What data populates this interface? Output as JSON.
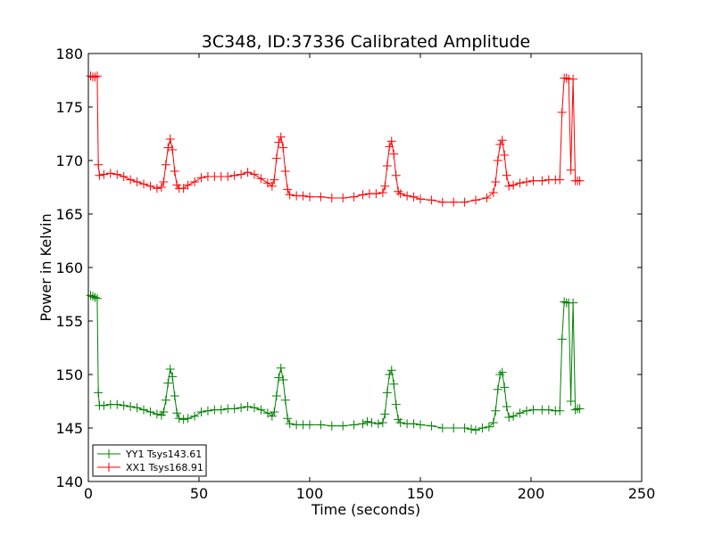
{
  "chart_data": {
    "type": "line",
    "title": "3C348, ID:37336 Calibrated Amplitude",
    "xlabel": "Time (seconds)",
    "ylabel": "Power in Kelvin",
    "xlim": [
      0,
      250
    ],
    "ylim": [
      140,
      180
    ],
    "xticks": [
      0,
      50,
      100,
      150,
      200,
      250
    ],
    "yticks": [
      140,
      145,
      150,
      155,
      160,
      165,
      170,
      175,
      180
    ],
    "legend_position": "lower-left",
    "grid": false,
    "series": [
      {
        "name": "YY1 Tsys143.61",
        "color": "#008000",
        "marker": "+",
        "points": [
          [
            1,
            157.4
          ],
          [
            2,
            157.3
          ],
          [
            3,
            157.2
          ],
          [
            4,
            157.1
          ],
          [
            4.5,
            148.3
          ],
          [
            5,
            147.1
          ],
          [
            7,
            147.1
          ],
          [
            10,
            147.2
          ],
          [
            13,
            147.2
          ],
          [
            16,
            147.1
          ],
          [
            19,
            147.0
          ],
          [
            22,
            146.9
          ],
          [
            25,
            146.7
          ],
          [
            28,
            146.5
          ],
          [
            31,
            146.3
          ],
          [
            33,
            146.2
          ],
          [
            34,
            146.5
          ],
          [
            35,
            147.6
          ],
          [
            36,
            149.2
          ],
          [
            37,
            150.5
          ],
          [
            38,
            149.8
          ],
          [
            39,
            148.0
          ],
          [
            40,
            146.4
          ],
          [
            41,
            145.9
          ],
          [
            43,
            145.8
          ],
          [
            45,
            145.9
          ],
          [
            48,
            146.1
          ],
          [
            51,
            146.5
          ],
          [
            54,
            146.6
          ],
          [
            57,
            146.7
          ],
          [
            60,
            146.7
          ],
          [
            63,
            146.8
          ],
          [
            66,
            146.8
          ],
          [
            69,
            146.9
          ],
          [
            72,
            147.0
          ],
          [
            75,
            146.9
          ],
          [
            78,
            146.7
          ],
          [
            81,
            146.4
          ],
          [
            83,
            146.1
          ],
          [
            84,
            146.5
          ],
          [
            85,
            148.0
          ],
          [
            86,
            149.7
          ],
          [
            87,
            150.6
          ],
          [
            88,
            149.5
          ],
          [
            89,
            147.6
          ],
          [
            90,
            145.9
          ],
          [
            91,
            145.4
          ],
          [
            94,
            145.3
          ],
          [
            97,
            145.3
          ],
          [
            100,
            145.3
          ],
          [
            105,
            145.3
          ],
          [
            110,
            145.2
          ],
          [
            115,
            145.2
          ],
          [
            120,
            145.3
          ],
          [
            124,
            145.4
          ],
          [
            126,
            145.6
          ],
          [
            128,
            145.5
          ],
          [
            131,
            145.4
          ],
          [
            133,
            145.5
          ],
          [
            134,
            146.3
          ],
          [
            135,
            148.3
          ],
          [
            136,
            150.0
          ],
          [
            137,
            150.4
          ],
          [
            138,
            149.1
          ],
          [
            139,
            147.2
          ],
          [
            140,
            145.8
          ],
          [
            141,
            145.5
          ],
          [
            144,
            145.4
          ],
          [
            147,
            145.4
          ],
          [
            150,
            145.3
          ],
          [
            155,
            145.2
          ],
          [
            160,
            145.0
          ],
          [
            165,
            145.0
          ],
          [
            170,
            145.0
          ],
          [
            173,
            144.9
          ],
          [
            175,
            144.8
          ],
          [
            178,
            145.0
          ],
          [
            181,
            145.1
          ],
          [
            183,
            145.5
          ],
          [
            184,
            146.6
          ],
          [
            185,
            148.6
          ],
          [
            186,
            150.0
          ],
          [
            187,
            150.2
          ],
          [
            188,
            148.8
          ],
          [
            189,
            147.0
          ],
          [
            190,
            146.0
          ],
          [
            192,
            146.1
          ],
          [
            195,
            146.4
          ],
          [
            198,
            146.6
          ],
          [
            201,
            146.7
          ],
          [
            205,
            146.7
          ],
          [
            208,
            146.7
          ],
          [
            211,
            146.6
          ],
          [
            213,
            146.6
          ],
          [
            214,
            153.3
          ],
          [
            215,
            156.8
          ],
          [
            216,
            156.7
          ],
          [
            217,
            156.7
          ],
          [
            218,
            147.5
          ],
          [
            219,
            156.7
          ],
          [
            220,
            146.7
          ],
          [
            221,
            146.8
          ],
          [
            222,
            146.8
          ]
        ]
      },
      {
        "name": "XX1 Tsys168.91",
        "color": "#ff0000",
        "marker": "+",
        "points": [
          [
            1,
            177.9
          ],
          [
            2,
            177.8
          ],
          [
            3,
            177.8
          ],
          [
            4,
            177.9
          ],
          [
            4.5,
            169.6
          ],
          [
            5,
            168.6
          ],
          [
            7,
            168.7
          ],
          [
            10,
            168.8
          ],
          [
            13,
            168.7
          ],
          [
            16,
            168.5
          ],
          [
            19,
            168.2
          ],
          [
            22,
            168.0
          ],
          [
            25,
            167.8
          ],
          [
            28,
            167.6
          ],
          [
            31,
            167.4
          ],
          [
            33,
            167.5
          ],
          [
            34,
            168.0
          ],
          [
            35,
            169.6
          ],
          [
            36,
            171.2
          ],
          [
            37,
            172.0
          ],
          [
            38,
            171.0
          ],
          [
            39,
            169.0
          ],
          [
            40,
            167.7
          ],
          [
            41,
            167.4
          ],
          [
            43,
            167.4
          ],
          [
            45,
            167.7
          ],
          [
            48,
            168.0
          ],
          [
            51,
            168.4
          ],
          [
            54,
            168.5
          ],
          [
            57,
            168.5
          ],
          [
            60,
            168.5
          ],
          [
            63,
            168.5
          ],
          [
            66,
            168.6
          ],
          [
            69,
            168.7
          ],
          [
            72,
            168.9
          ],
          [
            75,
            168.7
          ],
          [
            78,
            168.3
          ],
          [
            81,
            167.9
          ],
          [
            83,
            167.6
          ],
          [
            84,
            168.2
          ],
          [
            85,
            170.2
          ],
          [
            86,
            171.7
          ],
          [
            87,
            172.2
          ],
          [
            88,
            171.2
          ],
          [
            89,
            169.0
          ],
          [
            90,
            167.3
          ],
          [
            91,
            166.8
          ],
          [
            94,
            166.7
          ],
          [
            97,
            166.7
          ],
          [
            100,
            166.6
          ],
          [
            105,
            166.6
          ],
          [
            110,
            166.5
          ],
          [
            115,
            166.5
          ],
          [
            120,
            166.6
          ],
          [
            124,
            166.8
          ],
          [
            127,
            166.9
          ],
          [
            130,
            166.9
          ],
          [
            133,
            167.0
          ],
          [
            134,
            167.6
          ],
          [
            135,
            169.5
          ],
          [
            136,
            171.3
          ],
          [
            137,
            171.8
          ],
          [
            138,
            170.6
          ],
          [
            139,
            168.6
          ],
          [
            140,
            167.1
          ],
          [
            141,
            166.9
          ],
          [
            144,
            166.7
          ],
          [
            147,
            166.6
          ],
          [
            150,
            166.4
          ],
          [
            155,
            166.3
          ],
          [
            160,
            166.1
          ],
          [
            165,
            166.1
          ],
          [
            170,
            166.1
          ],
          [
            175,
            166.3
          ],
          [
            180,
            166.5
          ],
          [
            183,
            167.0
          ],
          [
            184,
            168.0
          ],
          [
            185,
            170.0
          ],
          [
            186,
            171.5
          ],
          [
            187,
            171.9
          ],
          [
            188,
            170.5
          ],
          [
            189,
            168.6
          ],
          [
            190,
            167.6
          ],
          [
            192,
            167.7
          ],
          [
            195,
            167.9
          ],
          [
            198,
            168.0
          ],
          [
            201,
            168.1
          ],
          [
            205,
            168.1
          ],
          [
            208,
            168.2
          ],
          [
            211,
            168.2
          ],
          [
            213,
            168.2
          ],
          [
            214,
            174.5
          ],
          [
            215,
            177.7
          ],
          [
            216,
            177.7
          ],
          [
            217,
            177.6
          ],
          [
            218,
            169.1
          ],
          [
            219,
            177.6
          ],
          [
            220,
            168.1
          ],
          [
            221,
            168.1
          ],
          [
            222,
            168.1
          ]
        ]
      }
    ]
  }
}
